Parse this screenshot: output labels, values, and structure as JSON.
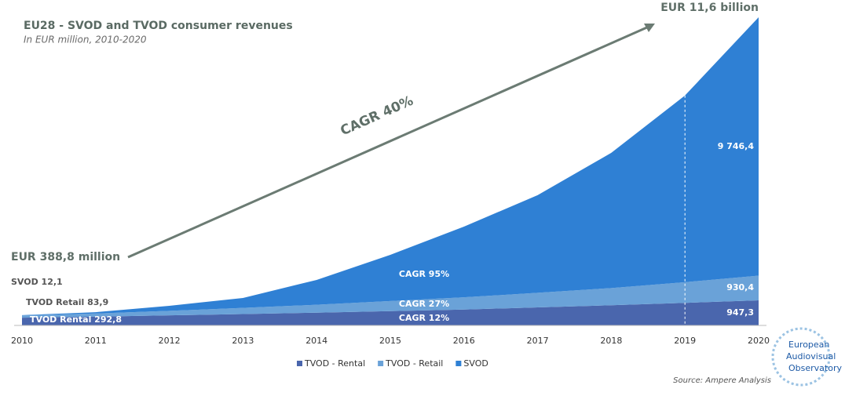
{
  "chart_data": {
    "type": "area",
    "stacked": true,
    "title": "EU28 - SVOD and TVOD consumer revenues",
    "subtitle": "In EUR million, 2010-2020",
    "source": "Source: Ampere Analysis",
    "logo": [
      "European",
      "Audiovisual",
      "Observatory"
    ],
    "annotations": {
      "total_label": "EUR 11,6 billion",
      "cagr_total": "CAGR 40%",
      "start_label": "EUR 388,8 million",
      "cagr_svod": "CAGR 95%",
      "cagr_retail": "CAGR 27%",
      "cagr_rental": "CAGR 12%"
    },
    "x": [
      2010,
      2011,
      2012,
      2013,
      2014,
      2015,
      2016,
      2017,
      2018,
      2019,
      2020
    ],
    "series": [
      {
        "name": "TVOD - Rental",
        "color": "#4a66ad",
        "values": [
          292.8,
          330,
          380,
          430,
          480,
          540,
          600,
          680,
          760,
          850,
          947.3
        ],
        "value_labels": [
          "TVOD Rental 292,8",
          null,
          null,
          null,
          null,
          null,
          null,
          null,
          null,
          null,
          "947,3"
        ]
      },
      {
        "name": "TVOD - Retail",
        "color": "#6aa2d8",
        "values": [
          83.9,
          120,
          170,
          230,
          300,
          380,
          460,
          550,
          650,
          780,
          930.4
        ],
        "value_labels": [
          "TVOD Retail 83,9",
          null,
          null,
          null,
          null,
          null,
          null,
          null,
          null,
          null,
          "930,4"
        ]
      },
      {
        "name": "SVOD",
        "color": "#2f80d4",
        "values": [
          12.1,
          50,
          190,
          376,
          936,
          1742,
          2667,
          3683,
          5101,
          7042,
          9746.4
        ],
        "value_labels": [
          "SVOD 12,1",
          null,
          null,
          null,
          null,
          null,
          null,
          null,
          null,
          null,
          "9 746,4"
        ]
      }
    ]
  }
}
